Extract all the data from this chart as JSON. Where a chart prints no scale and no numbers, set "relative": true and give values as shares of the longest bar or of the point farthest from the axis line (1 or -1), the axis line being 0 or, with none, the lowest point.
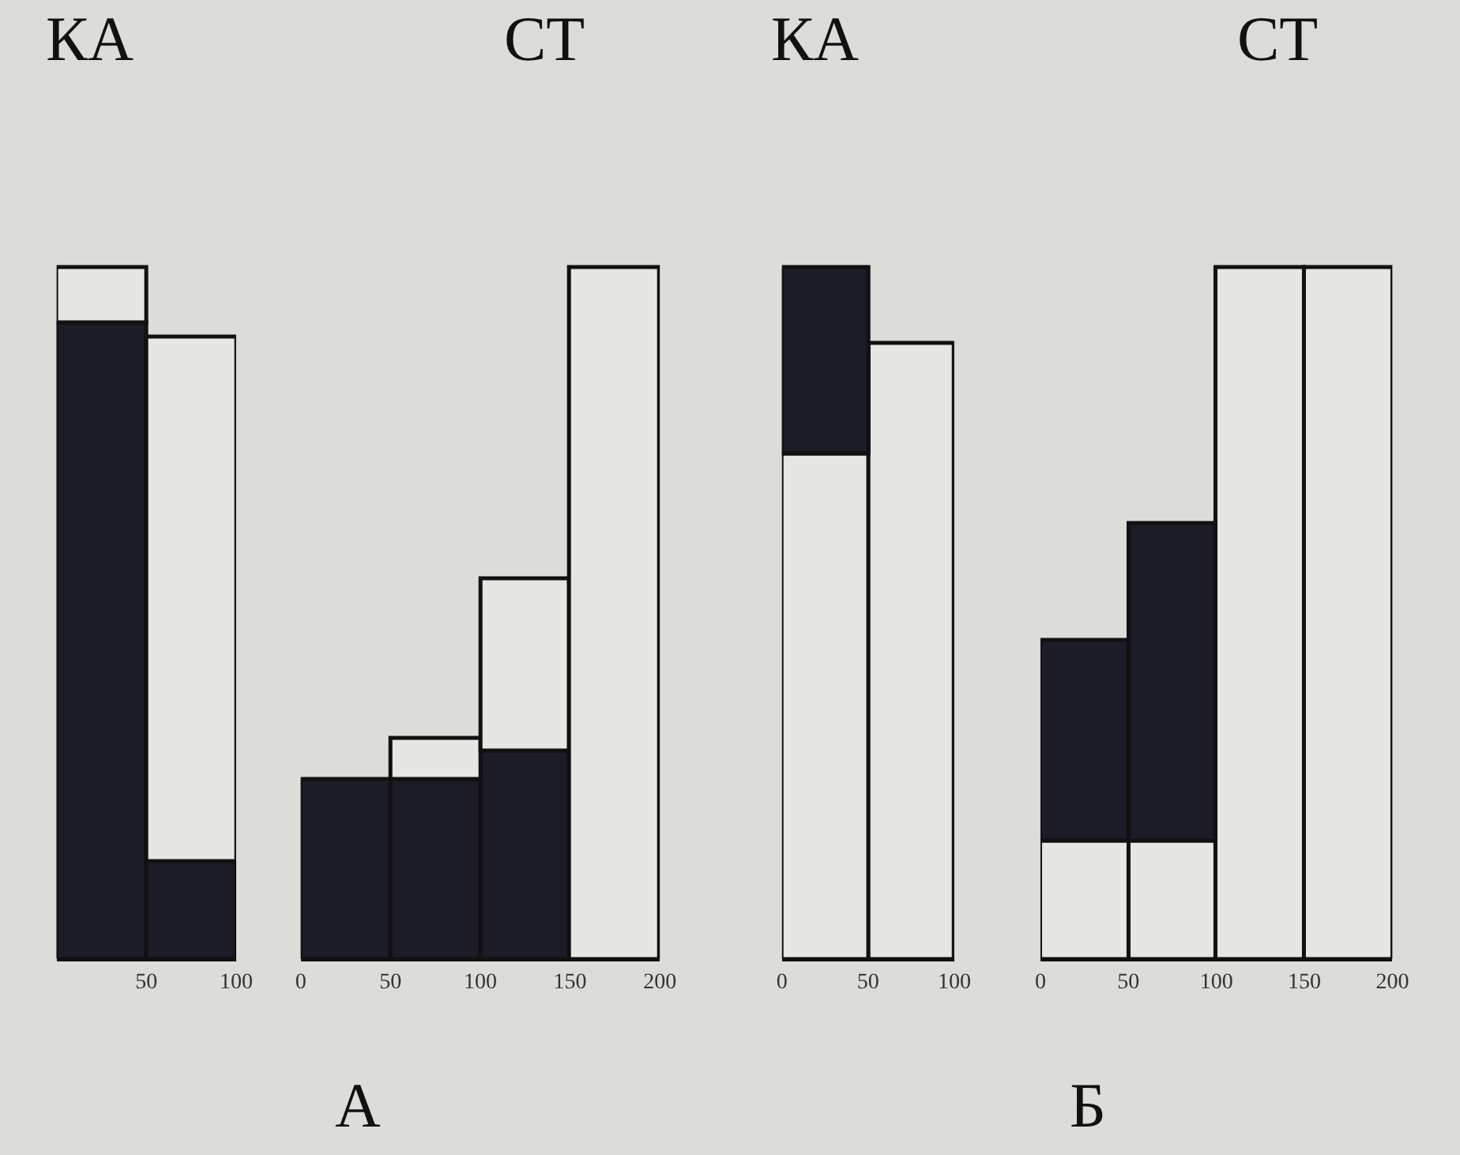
{
  "chart_data": [
    {
      "type": "bar",
      "title": "КА",
      "annotations": [
        "А"
      ],
      "x": [
        25,
        75
      ],
      "xlim": [
        0,
        100
      ],
      "xticks": [
        50,
        100
      ],
      "stacked": true,
      "relative": true,
      "series": [
        {
          "color": "#1c1c26",
          "values": [
            0.92,
            0.14
          ]
        },
        {
          "color": "#e6e6e2",
          "values": [
            0.08,
            0.76
          ]
        }
      ]
    },
    {
      "type": "bar",
      "title": "СТ",
      "x": [
        25,
        75,
        125,
        175
      ],
      "xlim": [
        0,
        200
      ],
      "xticks": [
        0,
        50,
        100,
        150,
        200
      ],
      "stacked": true,
      "relative": true,
      "series": [
        {
          "color": "#1c1c26",
          "values": [
            0.26,
            0.26,
            0.3,
            null
          ]
        },
        {
          "color": "#e6e6e2",
          "values": [
            null,
            0.06,
            0.25,
            1
          ]
        }
      ]
    },
    {
      "type": "bar",
      "title": "КА",
      "annotations": [
        "Б"
      ],
      "x": [
        25,
        75
      ],
      "xlim": [
        0,
        100
      ],
      "xticks": [
        0,
        50,
        100
      ],
      "stacked": true,
      "relative": true,
      "series": [
        {
          "color": "#e6e6e2",
          "values": [
            0.73,
            0.89
          ]
        },
        {
          "color": "#1c1c26",
          "values": [
            0.27,
            null
          ]
        }
      ]
    },
    {
      "type": "bar",
      "title": "СТ",
      "x": [
        25,
        75,
        125,
        175
      ],
      "xlim": [
        0,
        200
      ],
      "xticks": [
        0,
        50,
        100,
        150,
        200
      ],
      "stacked": true,
      "relative": true,
      "series": [
        {
          "color": "#e6e6e2",
          "values": [
            0.17,
            0.17,
            1,
            1
          ]
        },
        {
          "color": "#1c1c26",
          "values": [
            0.29,
            0.46,
            null,
            null
          ]
        }
      ]
    }
  ]
}
